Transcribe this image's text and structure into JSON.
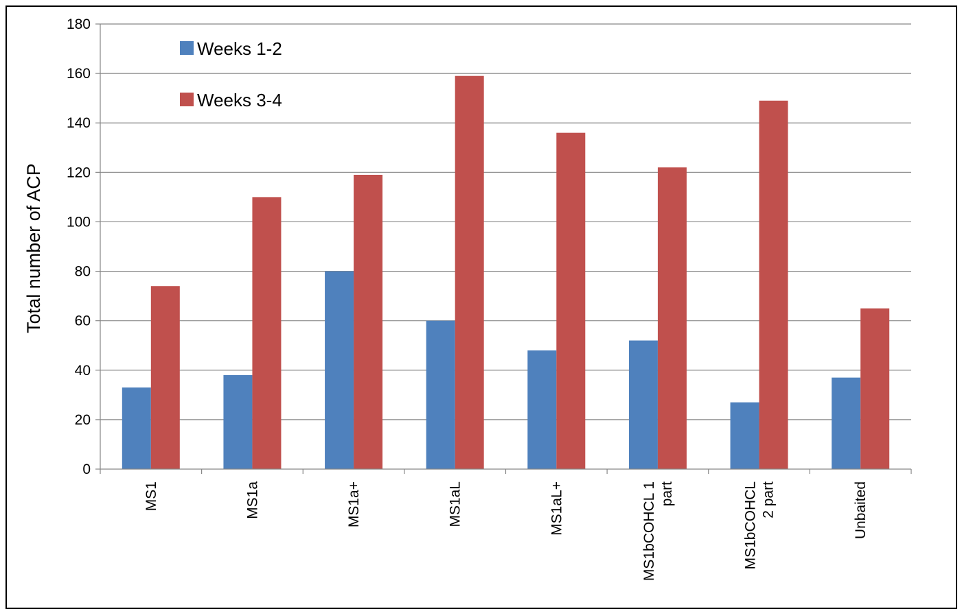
{
  "chart_data": {
    "type": "bar",
    "title": "",
    "xlabel": "",
    "ylabel": "Total number of ACP",
    "ylim": [
      0,
      180
    ],
    "yticks": [
      0,
      20,
      40,
      60,
      80,
      100,
      120,
      140,
      160,
      180
    ],
    "grid": true,
    "legend_position": "top-left",
    "categories": [
      [
        "MS1"
      ],
      [
        "MS1a"
      ],
      [
        "MS1a+"
      ],
      [
        "MS1aL"
      ],
      [
        "MS1aL+"
      ],
      [
        "MS1bCOHCL 1",
        "part"
      ],
      [
        "MS1bCOHCL",
        "2 part"
      ],
      [
        "Unbaited"
      ]
    ],
    "series": [
      {
        "name": "Weeks 1-2",
        "color": "#4F81BD",
        "values": [
          33,
          38,
          80,
          60,
          48,
          52,
          27,
          37
        ]
      },
      {
        "name": "Weeks 3-4",
        "color": "#C0504D",
        "values": [
          74,
          110,
          119,
          159,
          136,
          122,
          149,
          65
        ]
      }
    ]
  }
}
